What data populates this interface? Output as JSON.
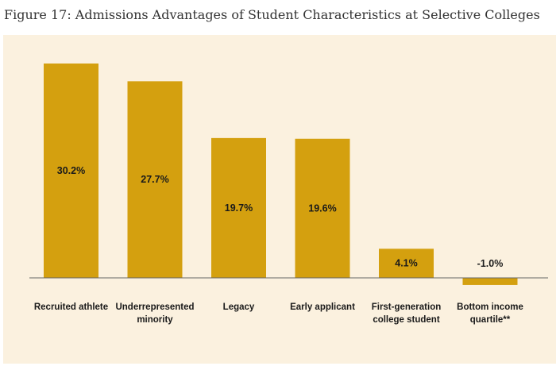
{
  "figure": {
    "title": "Figure 17: Admissions Advantages of Student Characteristics at Selective Colleges"
  },
  "colors": {
    "panel_background": "#fbf1df",
    "bar": "#d4a00f",
    "axis": "#666666",
    "text": "#1a1a1a"
  },
  "chart_data": {
    "type": "bar",
    "title": "Figure 17: Admissions Advantages of Student Characteristics at Selective Colleges",
    "categories": [
      [
        "Recruited athlete"
      ],
      [
        "Underrepresented",
        "minority"
      ],
      [
        "Legacy"
      ],
      [
        "Early applicant"
      ],
      [
        "First-generation",
        "college student"
      ],
      [
        "Bottom income",
        "quartile**"
      ]
    ],
    "values": [
      30.2,
      27.7,
      19.7,
      19.6,
      4.1,
      -1.0
    ],
    "value_labels": [
      "30.2%",
      "27.7%",
      "19.7%",
      "19.6%",
      "4.1%",
      "-1.0%"
    ],
    "ylim": [
      -1.0,
      30.2
    ],
    "grid": false,
    "legend": "none",
    "xlabel": "",
    "ylabel": ""
  }
}
